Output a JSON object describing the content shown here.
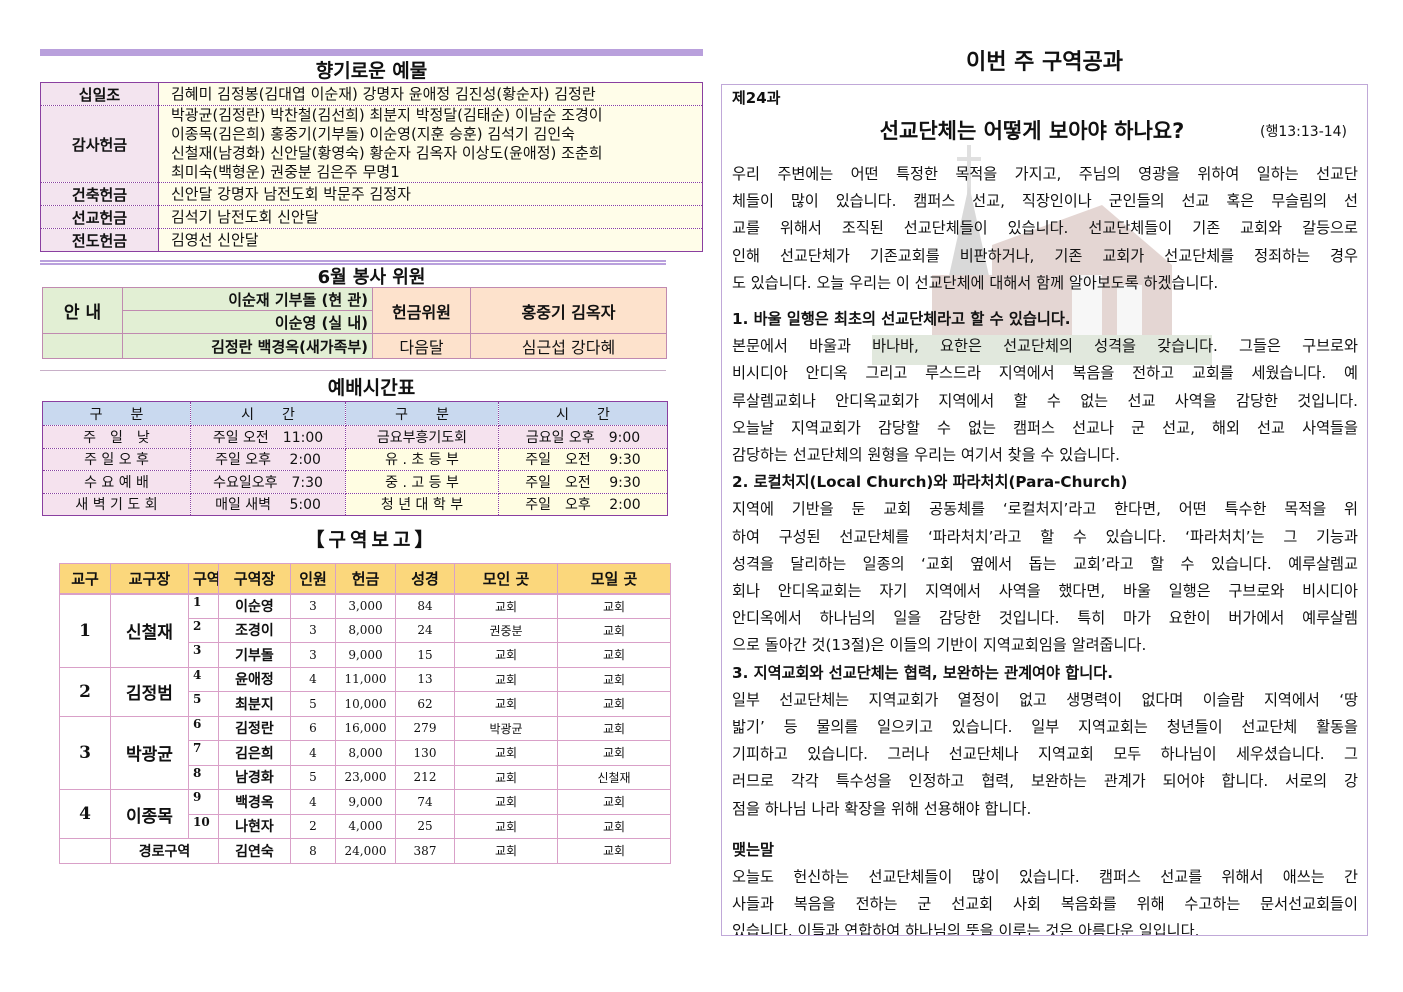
{
  "offering": {
    "title": "향기로운 예물",
    "rows": [
      {
        "label": "십일조",
        "lines": [
          "김혜미 김정봉(김대엽 이순재) 강명자 윤애정 김진성(황순자) 김정란"
        ]
      },
      {
        "label": "감사헌금",
        "lines": [
          "박광균(김정란) 박찬철(김선희) 최분지 박정달(김태순) 이남순 조경이",
          "이종목(김은희) 홍중기(기부돌) 이순영(지훈 승훈) 김석기 김인숙",
          "신철재(남경화) 신안달(황영숙) 황순자 김옥자 이상도(윤애정) 조춘희",
          "최미숙(백형운) 권중분 김은주 무명1"
        ]
      },
      {
        "label": "건축헌금",
        "lines": [
          "신안달 강명자 남전도회 박문주 김정자"
        ]
      },
      {
        "label": "선교헌금",
        "lines": [
          "김석기 남전도회 신안달"
        ]
      },
      {
        "label": "전도헌금",
        "lines": [
          "김영선 신안달"
        ]
      }
    ]
  },
  "service": {
    "title": "6월 봉사 위원",
    "guide_label": "안 내",
    "guide_rows": [
      "이순재 기부돌 (현 관)",
      "이순영 (실 내)",
      "김정란 백경옥(새가족부)"
    ],
    "offering_label": "헌금위원",
    "offering_members": "홍중기 김옥자",
    "next_label": "다음달",
    "next_members": "심근섭 강다혜"
  },
  "worship": {
    "title": "예배시간표",
    "headers": [
      "구　　분",
      "시　　간",
      "구　　분",
      "시　　간"
    ],
    "rows": [
      [
        "주　일　낮",
        "주일 오전　11:00",
        "금요부흥기도회",
        "금요일 오후　9:00"
      ],
      [
        "주 일 오 후",
        "주일 오후　 2:00",
        "유 . 초 등 부",
        "주일　오전　 9:30"
      ],
      [
        "수 요 예 배",
        "수요일오후　7:30",
        "중 . 고 등 부",
        "주일　오전　 9:30"
      ],
      [
        "새 벽 기 도 회",
        "매일 새벽　 5:00",
        "청 년 대 학 부",
        "주일　오후　 2:00"
      ]
    ]
  },
  "district": {
    "title": "【구역보고】",
    "headers": [
      "교구",
      "교구장",
      "구역",
      "구역장",
      "인원",
      "헌금",
      "성경",
      "모인 곳",
      "모일 곳"
    ],
    "groups": [
      {
        "no": "1",
        "leader": "신철재",
        "rows": [
          [
            "1",
            "이순영",
            "3",
            "3,000",
            "84",
            "교회",
            "교회"
          ],
          [
            "2",
            "조경이",
            "3",
            "8,000",
            "24",
            "권중분",
            "교회"
          ],
          [
            "3",
            "기부돌",
            "3",
            "9,000",
            "15",
            "교회",
            "교회"
          ]
        ]
      },
      {
        "no": "2",
        "leader": "김정범",
        "rows": [
          [
            "4",
            "윤애정",
            "4",
            "11,000",
            "13",
            "교회",
            "교회"
          ],
          [
            "5",
            "최분지",
            "5",
            "10,000",
            "62",
            "교회",
            "교회"
          ]
        ]
      },
      {
        "no": "3",
        "leader": "박광균",
        "rows": [
          [
            "6",
            "김정란",
            "6",
            "16,000",
            "279",
            "박광균",
            "교회"
          ],
          [
            "7",
            "김은희",
            "4",
            "8,000",
            "130",
            "교회",
            "교회"
          ],
          [
            "8",
            "남경화",
            "5",
            "23,000",
            "212",
            "교회",
            "신철재"
          ]
        ]
      },
      {
        "no": "4",
        "leader": "이종목",
        "rows": [
          [
            "9",
            "백경옥",
            "4",
            "9,000",
            "74",
            "교회",
            "교회"
          ],
          [
            "10",
            "나현자",
            "2",
            "4,000",
            "25",
            "교회",
            "교회"
          ]
        ]
      }
    ],
    "elder": [
      "경로구역",
      "김연숙",
      "8",
      "24,000",
      "387",
      "교회",
      "교회"
    ]
  },
  "lesson": {
    "header": "이번 주 구역공과",
    "number": "제24과",
    "title": "선교단체는 어떻게 보아야 하나요?",
    "reference": "(행13:13-14)",
    "intro": [
      " 우리 주변에는 어떤 특정한 목적을 가지고, 주님의 영광을 위하여 일하는 선교단",
      "체들이 많이 있습니다. 캠퍼스 선교, 직장인이나 군인들의 선교 혹은 무슬림의 선",
      "교를 위해서 조직된 선교단체들이 있습니다. 선교단체들이 기존 교회와 갈등으로",
      "인해 선교단체가 기존교회를 비판하거나, 기존 교회가 선교단체를 정죄하는 경우",
      "도 있습니다. 오늘 우리는 이 선교단체에 대해서 함께 알아보도록 하겠습니다."
    ],
    "sections": [
      {
        "heading": "1. 바울 일행은 최초의 선교단체라고 할 수 있습니다.",
        "lines": [
          " 본문에서 바울과 바나바, 요한은 선교단체의 성격을 갖습니다. 그들은 구브로와",
          "비시디아 안디옥 그리고 루스드라 지역에서 복음을 전하고 교회를 세웠습니다. 예",
          "루살렘교회나 안디옥교회가 지역에서 할 수 없는 선교 사역을 감당한 것입니다.",
          "오늘날 지역교회가 감당할 수 없는 캠퍼스 선교나 군 선교, 해외 선교 사역들을",
          "감당하는 선교단체의 원형을 우리는 여기서 찾을 수 있습니다."
        ]
      },
      {
        "heading": "2. 로컬처지(Local Church)와 파라처치(Para-Church)",
        "lines": [
          " 지역에 기반을 둔 교회 공동체를 ‘로컬처지’라고 한다면, 어떤 특수한 목적을 위",
          "하여 구성된 선교단체를 ‘파라처치’라고 할 수 있습니다. ‘파라처치’는 그 기능과",
          "성격을 달리하는 일종의 ‘교회 옆에서 돕는 교회’라고 할 수 있습니다. 예루살렘교",
          "회나 안디옥교회는 자기 지역에서 사역을 했다면, 바울 일행은 구브로와 비시디아",
          "안디옥에서 하나님의 일을 감당한 것입니다. 특히 마가 요한이 버가에서 예루살렘",
          "으로 돌아간 것(13절)은 이들의 기반이 지역교회임을 알려줍니다."
        ]
      },
      {
        "heading": "3. 지역교회와 선교단체는 협력, 보완하는 관계여야 합니다.",
        "lines": [
          " 일부 선교단체는 지역교회가 열정이 없고 생명력이 없다며 이슬람 지역에서 ‘땅",
          "밟기’ 등 물의를 일으키고 있습니다. 일부 지역교회는 청년들이 선교단체 활동을",
          "기피하고 있습니다. 그러나 선교단체나 지역교회 모두 하나님이 세우셨습니다. 그",
          "러므로 각각 특수성을 인정하고 협력, 보완하는 관계가 되어야 합니다. 서로의 강",
          "점을 하나님 나라 확장을 위해 선용해야 합니다."
        ]
      },
      {
        "heading": " 맺는말",
        "lines": [
          " 오늘도 헌신하는 선교단체들이 많이 있습니다. 캠퍼스 선교를 위해서 애쓰는 간",
          "사들과 복음을 전하는 군 선교회 사회 복음화를 위해 수고하는 문서선교회들이",
          "있습니다. 이들과 연합하여 하나님의 뜻을 이루는 것은 아름다운 일입니다."
        ]
      }
    ]
  },
  "colors": {
    "purple_border": "#8a3fa0",
    "purple_bar": "#b9a0dc",
    "header_gold": "#fbd77c",
    "header_blue": "#c9d9ef"
  }
}
